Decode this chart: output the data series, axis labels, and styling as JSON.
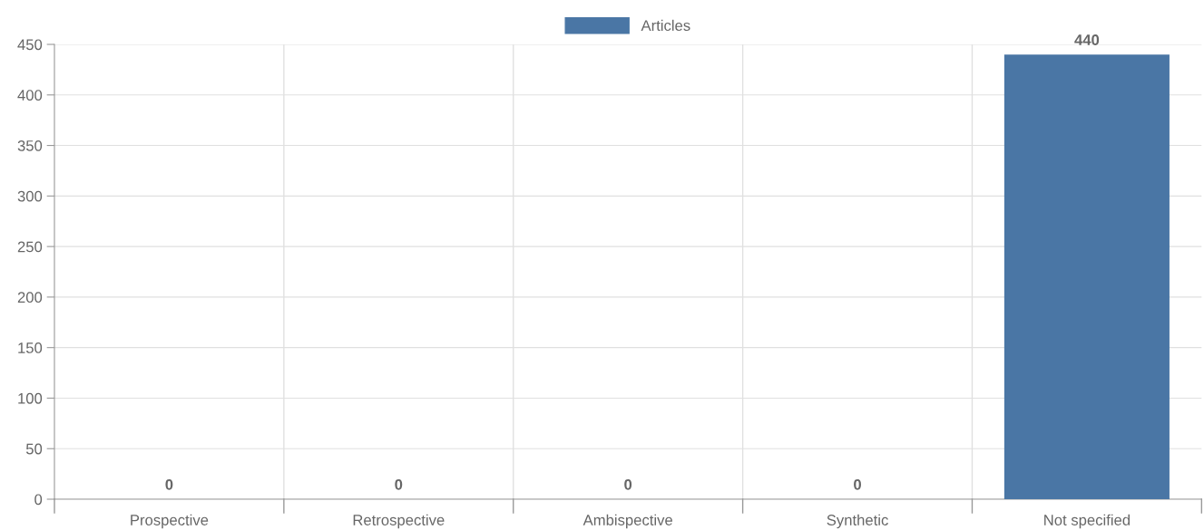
{
  "chart_data": {
    "type": "bar",
    "categories": [
      "Prospective",
      "Retrospective",
      "Ambispective",
      "Synthetic",
      "Not specified"
    ],
    "series": [
      {
        "name": "Articles",
        "color": "#4a76a5",
        "values": [
          0,
          0,
          0,
          0,
          440
        ]
      }
    ],
    "ylim": [
      0,
      450
    ],
    "yticks": [
      0,
      50,
      100,
      150,
      200,
      250,
      300,
      350,
      400,
      450
    ],
    "grid": true,
    "legend": "top",
    "data_labels": true
  }
}
